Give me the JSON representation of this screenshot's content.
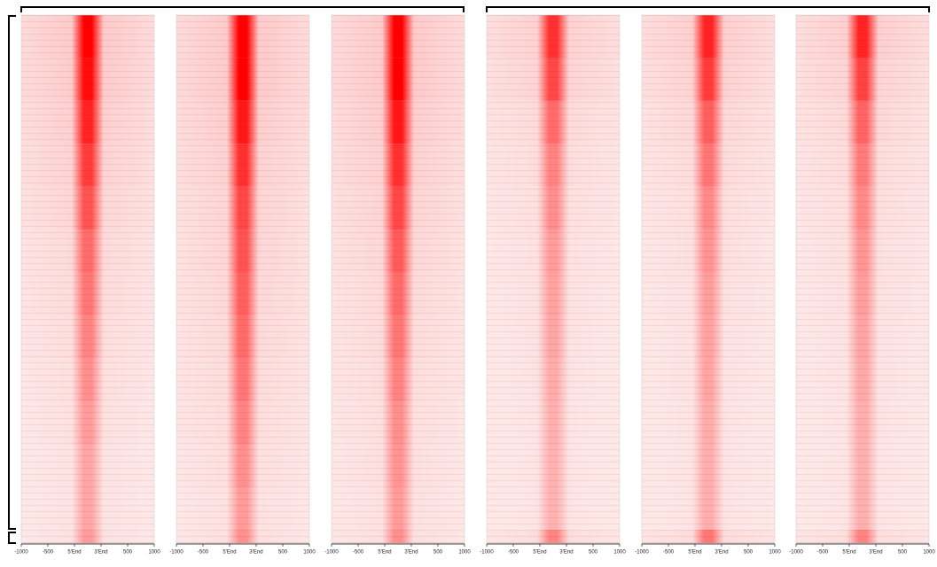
{
  "chart_data": {
    "type": "heatmap",
    "xlim": [
      -1000,
      1500
    ],
    "xticks": [
      -1000,
      -500,
      {
        "value": 0,
        "label": "5'End"
      },
      {
        "value": 500,
        "label": "3'End"
      },
      {
        "value": 1000,
        "label": "500"
      },
      {
        "value": 1500,
        "label": "1000"
      }
    ],
    "color": "#ff0000",
    "panels": [
      {
        "values": [
          1,
          0.95,
          0.85,
          0.75,
          0.65,
          0.55,
          0.5,
          0.45,
          0.4,
          0.35,
          0.3,
          0.3,
          0.35
        ]
      },
      {
        "values": [
          1,
          1,
          0.9,
          0.8,
          0.7,
          0.65,
          0.6,
          0.55,
          0.5,
          0.45,
          0.4,
          0.35,
          0.4
        ]
      },
      {
        "values": [
          1,
          1,
          0.9,
          0.8,
          0.7,
          0.62,
          0.55,
          0.5,
          0.45,
          0.4,
          0.38,
          0.35,
          0.4
        ]
      },
      {
        "values": [
          0.8,
          0.7,
          0.55,
          0.45,
          0.4,
          0.35,
          0.32,
          0.3,
          0.28,
          0.26,
          0.25,
          0.25,
          0.45
        ]
      },
      {
        "values": [
          0.85,
          0.75,
          0.6,
          0.5,
          0.42,
          0.38,
          0.34,
          0.32,
          0.3,
          0.28,
          0.27,
          0.27,
          0.5
        ]
      },
      {
        "values": [
          0.85,
          0.72,
          0.58,
          0.48,
          0.42,
          0.37,
          0.34,
          0.31,
          0.29,
          0.27,
          0.26,
          0.26,
          0.45
        ]
      }
    ]
  }
}
